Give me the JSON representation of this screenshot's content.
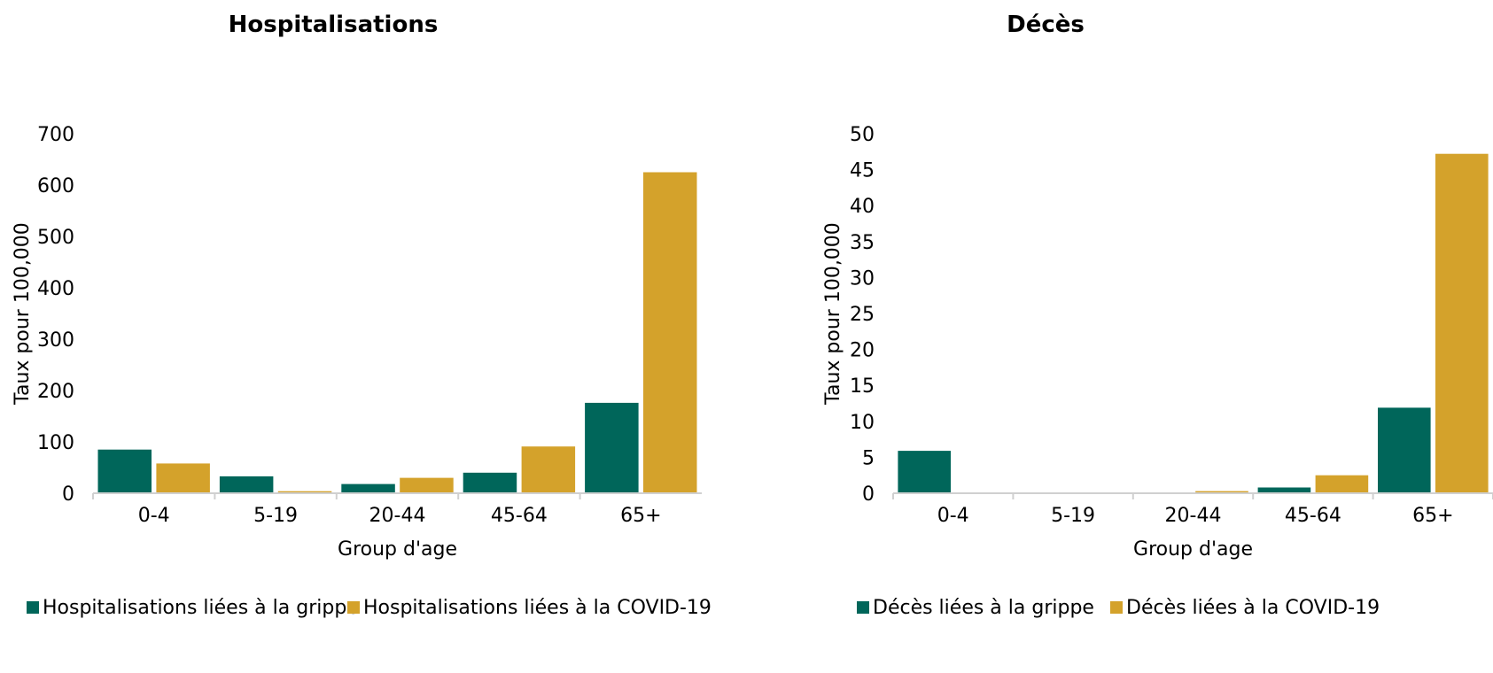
{
  "colors": {
    "grippe": "#00665a",
    "covid": "#d4a22b",
    "axis": "#d0d0d0"
  },
  "chart_data": [
    {
      "type": "bar",
      "title": "Hospitalisations",
      "xlabel": "Group d'age",
      "ylabel": "Taux pour 100,000",
      "categories": [
        "0-4",
        "5-19",
        "20-44",
        "45-64",
        "65+"
      ],
      "ylim": [
        0,
        700
      ],
      "yticks": [
        0,
        100,
        200,
        300,
        400,
        500,
        600,
        700
      ],
      "grid": false,
      "legend_position": "bottom",
      "series": [
        {
          "name": "Hospitalisations liées à la grippe",
          "values": [
            85,
            33,
            18,
            40,
            176
          ],
          "color_key": "grippe"
        },
        {
          "name": "Hospitalisations liées à la COVID-19",
          "values": [
            58,
            4,
            30,
            91,
            625
          ],
          "color_key": "covid"
        }
      ]
    },
    {
      "type": "bar",
      "title": "Décès",
      "xlabel": "Group d'age",
      "ylabel": "Taux pour 100,000",
      "categories": [
        "0-4",
        "5-19",
        "20-44",
        "45-64",
        "65+"
      ],
      "ylim": [
        0,
        50
      ],
      "yticks": [
        0,
        5,
        10,
        15,
        20,
        25,
        30,
        35,
        40,
        45,
        50
      ],
      "grid": false,
      "legend_position": "bottom",
      "series": [
        {
          "name": "Décès liées à la grippe",
          "values": [
            5.9,
            0,
            0,
            0.8,
            11.9
          ],
          "color_key": "grippe"
        },
        {
          "name": "Décès liées à la COVID-19",
          "values": [
            0,
            0,
            0.3,
            2.5,
            47.2
          ],
          "color_key": "covid"
        }
      ]
    }
  ]
}
